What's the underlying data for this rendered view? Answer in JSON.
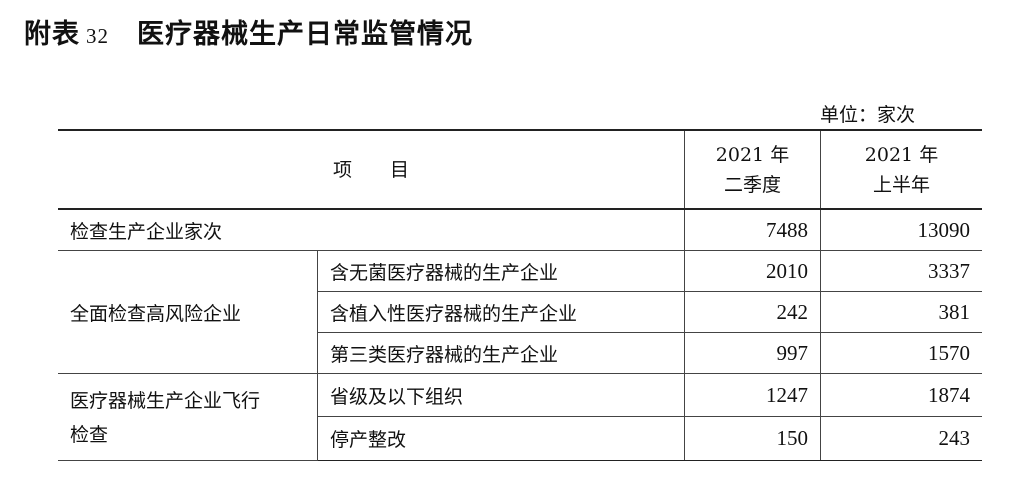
{
  "title": {
    "prefix": "附表",
    "number": "32",
    "text": "医疗器械生产日常监管情况"
  },
  "unit": "单位：家次",
  "headers": {
    "item": "项　　目",
    "col1": [
      "2021 年",
      "二季度"
    ],
    "col2": [
      "2021 年",
      "上半年"
    ]
  },
  "rows": [
    {
      "group": "检查生产企业家次",
      "sub": "",
      "q2": "7488",
      "h1": "13090"
    },
    {
      "group": "全面检查高风险企业",
      "sub": "含无菌医疗器械的生产企业",
      "q2": "2010",
      "h1": "3337"
    },
    {
      "sub": "含植入性医疗器械的生产企业",
      "q2": "242",
      "h1": "381"
    },
    {
      "sub": "第三类医疗器械的生产企业",
      "q2": "997",
      "h1": "1570"
    },
    {
      "group": "医疗器械生产企业飞行检查",
      "sub": "省级及以下组织",
      "q2": "1247",
      "h1": "1874"
    },
    {
      "sub": "停产整改",
      "q2": "150",
      "h1": "243"
    }
  ]
}
